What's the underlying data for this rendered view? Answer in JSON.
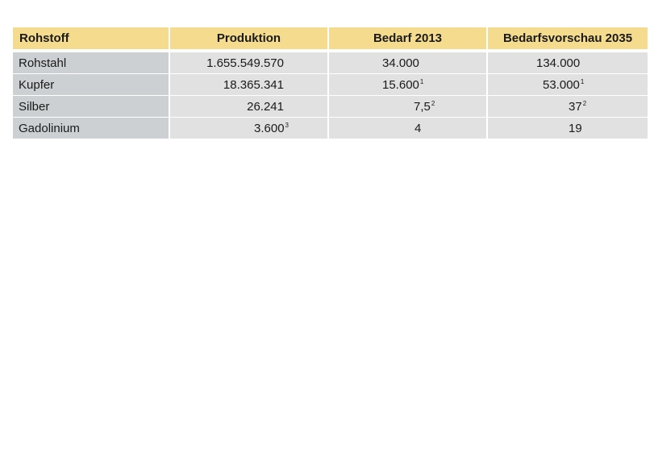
{
  "table": {
    "headers": [
      "Rohstoff",
      "Produktion",
      "Bedarf 2013",
      "Bedarfsvorschau 2035"
    ],
    "rows": [
      {
        "rohstoff": "Rohstahl",
        "produktion": "1.655.549.570",
        "produktion_sup": "",
        "bedarf": "34.000",
        "bedarf_sup": "",
        "vorschau": "134.000",
        "vorschau_sup": ""
      },
      {
        "rohstoff": "Kupfer",
        "produktion": "18.365.341",
        "produktion_sup": "",
        "bedarf": "15.600",
        "bedarf_sup": "1",
        "vorschau": "53.000",
        "vorschau_sup": "1"
      },
      {
        "rohstoff": "Silber",
        "produktion": "26.241",
        "produktion_sup": "",
        "bedarf": "7,5",
        "bedarf_sup": "2",
        "vorschau": "37",
        "vorschau_sup": "2"
      },
      {
        "rohstoff": "Gadolinium",
        "produktion": "3.600",
        "produktion_sup": "3",
        "bedarf": "4",
        "bedarf_sup": "",
        "vorschau": "19",
        "vorschau_sup": ""
      }
    ]
  },
  "colors": {
    "header_bg": "#f5db8e",
    "cell_bg": "#e1e1e1",
    "first_col_bg": "#cdd0d2"
  }
}
